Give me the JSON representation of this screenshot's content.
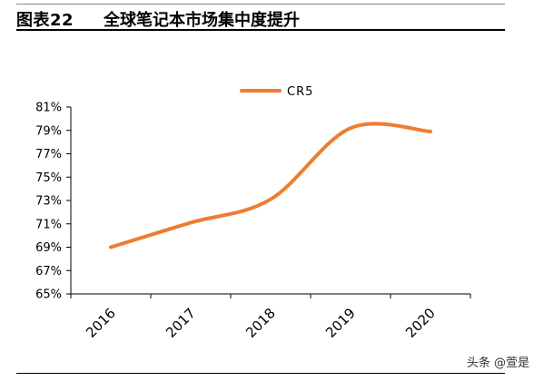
{
  "figure": {
    "label": "图表22",
    "title": "全球笔记本市场集中度提升"
  },
  "watermark": "头条 @萱是",
  "colors": {
    "series": "#ED7D31",
    "axis": "#000000"
  },
  "chart_data": {
    "type": "line",
    "title": "",
    "xlabel": "",
    "ylabel": "",
    "categories": [
      "2016",
      "2017",
      "2018",
      "2019",
      "2020"
    ],
    "series": [
      {
        "name": "CR5",
        "values": [
          69.0,
          71.1,
          73.1,
          79.2,
          78.9
        ]
      }
    ],
    "ylim": [
      65,
      81
    ],
    "yticks": [
      "65%",
      "67%",
      "69%",
      "71%",
      "73%",
      "75%",
      "77%",
      "79%",
      "81%"
    ],
    "grid": false,
    "legend": "top-center",
    "smooth": true
  }
}
